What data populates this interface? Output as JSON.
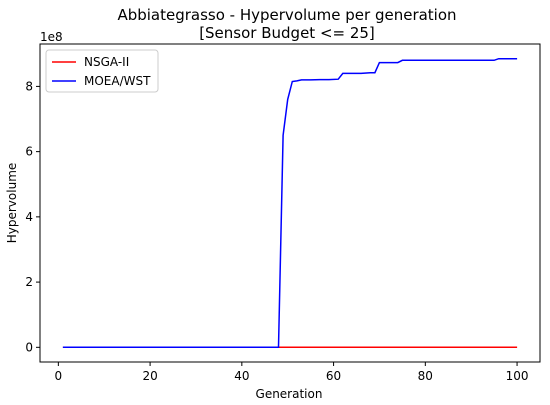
{
  "chart_data": {
    "type": "line",
    "title": "Abbiategrasso - Hypervolume per generation",
    "subtitle": "[Sensor Budget <= 25]",
    "xlabel": "Generation",
    "ylabel": "Hypervolume",
    "y_offset_label": "1e8",
    "xlim": [
      -4,
      105
    ],
    "ylim": [
      -0.45,
      9.3
    ],
    "x_ticks": [
      0,
      20,
      40,
      60,
      80,
      100
    ],
    "y_ticks": [
      0,
      2,
      4,
      6,
      8
    ],
    "legend_position": "upper-left",
    "series": [
      {
        "name": "NSGA-II",
        "color": "#ff0000",
        "x": [
          1,
          100
        ],
        "y": [
          0.0,
          0.0
        ]
      },
      {
        "name": "MOEA/WST",
        "color": "#0000ff",
        "x": [
          1,
          48,
          49,
          50,
          51,
          52,
          53,
          55,
          57,
          59,
          61,
          62,
          63,
          66,
          68,
          69,
          70,
          72,
          74,
          75,
          78,
          80,
          85,
          90,
          93,
          95,
          96,
          98,
          100
        ],
        "y": [
          0.0,
          0.0,
          6.5,
          7.6,
          8.15,
          8.17,
          8.2,
          8.2,
          8.21,
          8.21,
          8.22,
          8.4,
          8.4,
          8.4,
          8.42,
          8.42,
          8.73,
          8.73,
          8.73,
          8.8,
          8.8,
          8.8,
          8.8,
          8.8,
          8.8,
          8.8,
          8.85,
          8.85,
          8.85
        ]
      }
    ]
  }
}
